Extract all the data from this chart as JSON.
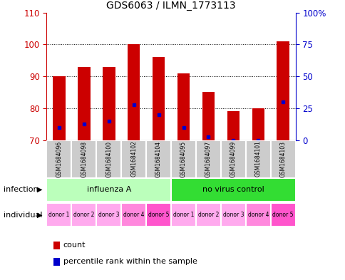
{
  "title": "GDS6063 / ILMN_1773113",
  "samples": [
    "GSM1684096",
    "GSM1684098",
    "GSM1684100",
    "GSM1684102",
    "GSM1684104",
    "GSM1684095",
    "GSM1684097",
    "GSM1684099",
    "GSM1684101",
    "GSM1684103"
  ],
  "count_values": [
    90,
    93,
    93,
    100,
    96,
    91,
    85,
    79,
    80,
    101
  ],
  "percentile_values": [
    74,
    75,
    76,
    81,
    78,
    74,
    71,
    70,
    70,
    82
  ],
  "ymin": 70,
  "ymax": 110,
  "yticks": [
    70,
    80,
    90,
    100,
    110
  ],
  "right_yticks": [
    0,
    25,
    50,
    75,
    100
  ],
  "right_ytick_labels": [
    "0",
    "25",
    "50",
    "75",
    "100%"
  ],
  "infection_groups": [
    {
      "label": "influenza A",
      "start": 0,
      "end": 5,
      "color": "#BBFFBB"
    },
    {
      "label": "no virus control",
      "start": 5,
      "end": 10,
      "color": "#33DD33"
    }
  ],
  "individual_labels": [
    "donor 1",
    "donor 2",
    "donor 3",
    "donor 4",
    "donor 5",
    "donor 1",
    "donor 2",
    "donor 3",
    "donor 4",
    "donor 5"
  ],
  "individual_colors": [
    "#FFAAEE",
    "#FFAAEE",
    "#FFAAEE",
    "#FF88DD",
    "#FF55CC",
    "#FFAAEE",
    "#FFAAEE",
    "#FFAAEE",
    "#FF88DD",
    "#FF55CC"
  ],
  "bar_color": "#CC0000",
  "percentile_color": "#0000CC",
  "bar_width": 0.5,
  "tick_color_left": "#CC0000",
  "tick_color_right": "#0000CC",
  "sample_box_color": "#CCCCCC",
  "sample_sep_color": "#FFFFFF"
}
